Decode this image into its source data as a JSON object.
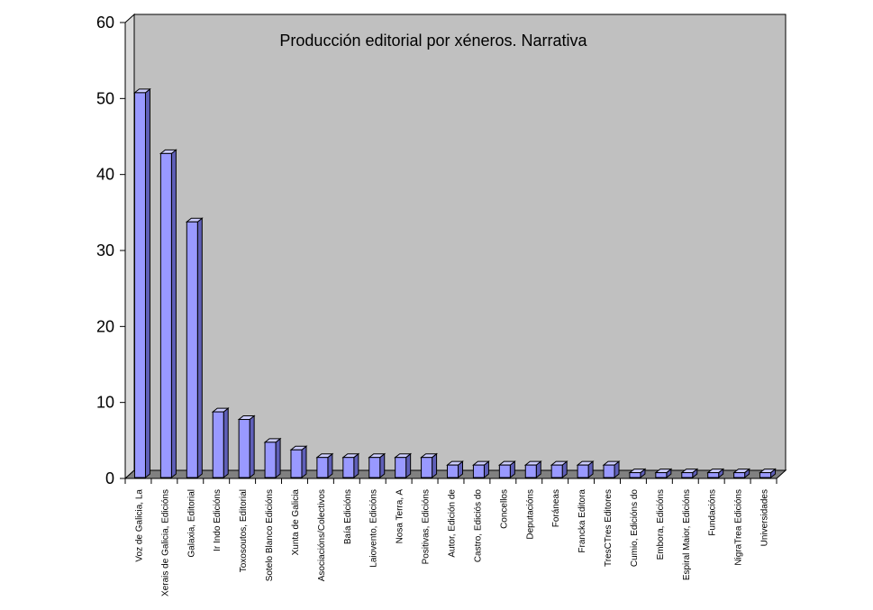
{
  "chart_data": {
    "type": "bar",
    "title": "Producción editorial por xéneros. Narrativa",
    "xlabel": "",
    "ylabel": "",
    "ylim": [
      0,
      60
    ],
    "yticks": [
      0,
      10,
      20,
      30,
      40,
      50,
      60
    ],
    "grid": false,
    "legend": "none",
    "style": "3d",
    "categories": [
      "Voz de Galicia, La",
      "Xerais de Galicia, Edicións",
      "Galaxia, Editorial",
      "Ir Indo Edicións",
      "Toxosoutos, Editorial",
      "Sotelo Blanco Edicións",
      "Xunta de Galicia",
      "Asociacións/Colectivos",
      "Baía Edicións",
      "Laiovento, Edicións",
      "Nosa Terra, A",
      "Positivas, Edicións",
      "Autor, Edición de",
      "Castro, Ediciós do",
      "Concellos",
      "Deputacións",
      "Foráneas",
      "Francka Editora",
      "TresCTres Editores",
      "Cumio, Edicións do",
      "Embora, Edicións",
      "Espiral Maior, Edicións",
      "Fundacións",
      "NigraTrea Edicións",
      "Universidades"
    ],
    "values": [
      51,
      43,
      34,
      9,
      8,
      5,
      4,
      3,
      3,
      3,
      3,
      3,
      2,
      2,
      2,
      2,
      2,
      2,
      2,
      1,
      1,
      1,
      1,
      1,
      1
    ],
    "colors": {
      "bar_front": "#9999ff",
      "bar_side": "#5f5fb8",
      "bar_top": "#ccccff",
      "plot_back": "#c0c0c0",
      "plot_floor": "#808080",
      "plot_side": "#d9d9d9"
    }
  }
}
